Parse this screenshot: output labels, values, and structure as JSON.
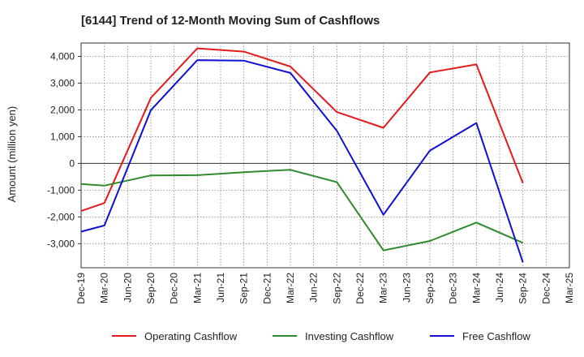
{
  "chart_data": {
    "type": "line",
    "title": "[6144]  Trend of 12-Month Moving Sum of Cashflows",
    "xlabel": "",
    "ylabel": "Amount (million yen)",
    "x": [
      "Dec-19",
      "Mar-20",
      "Jun-20",
      "Sep-20",
      "Dec-20",
      "Mar-21",
      "Jun-21",
      "Sep-21",
      "Dec-21",
      "Mar-22",
      "Jun-22",
      "Sep-22",
      "Dec-22",
      "Mar-23",
      "Jun-23",
      "Sep-23",
      "Dec-23",
      "Mar-24",
      "Jun-24",
      "Sep-24",
      "Dec-24",
      "Mar-25"
    ],
    "ylim": [
      -3900,
      4500
    ],
    "yticks": [
      -3000,
      -2000,
      -1000,
      0,
      1000,
      2000,
      3000,
      4000
    ],
    "ytick_labels": [
      "-3,000",
      "-2,000",
      "-1,000",
      "0",
      "1,000",
      "2,000",
      "3,000",
      "4,000"
    ],
    "grid": true,
    "legend_position": "bottom",
    "series": [
      {
        "name": "Operating Cashflow",
        "color": "#e41a1c",
        "values": [
          -1780,
          -1480,
          null,
          2450,
          null,
          4300,
          null,
          4180,
          null,
          3620,
          null,
          1920,
          null,
          1330,
          null,
          3400,
          null,
          3700,
          null,
          -740,
          null,
          null
        ]
      },
      {
        "name": "Investing Cashflow",
        "color": "#2e8b2e",
        "values": [
          -770,
          -830,
          null,
          -450,
          null,
          -440,
          null,
          -330,
          null,
          -240,
          null,
          -700,
          null,
          -3250,
          null,
          -2900,
          null,
          -2210,
          null,
          -2970,
          null,
          null
        ]
      },
      {
        "name": "Free Cashflow",
        "color": "#1010d0",
        "values": [
          -2550,
          -2320,
          null,
          1990,
          null,
          3860,
          null,
          3840,
          null,
          3380,
          null,
          1220,
          null,
          -1920,
          null,
          480,
          null,
          1510,
          null,
          -3700,
          null,
          null
        ]
      }
    ]
  }
}
